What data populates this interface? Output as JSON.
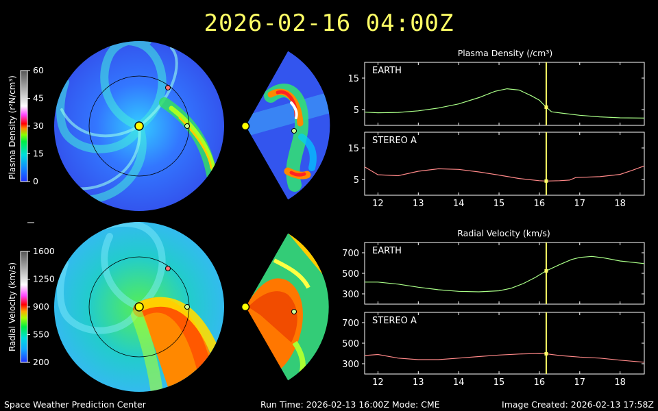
{
  "title": "2026-02-16  04:00Z",
  "footer": {
    "left": "Space Weather Prediction Center",
    "middle": "Run Time: 2026-02-13 16:00Z  Mode: CME",
    "right": "Image Created: 2026-02-13 17:58Z"
  },
  "density_colorbar": {
    "label": "Plasma Density (r²N/cm³)",
    "ticks": [
      "60",
      "45",
      "30",
      "15",
      "0"
    ]
  },
  "velocity_colorbar": {
    "label": "Radial Velocity (km/s)",
    "ticks": [
      "1600",
      "1250",
      "900",
      "550",
      "200"
    ]
  },
  "density_panel": {
    "title": "Plasma Density (/cm³)",
    "x_ticks": [
      "12",
      "13",
      "14",
      "15",
      "16",
      "17",
      "18"
    ],
    "earth": {
      "label": "EARTH",
      "y_ticks": [
        "15",
        "5"
      ]
    },
    "stereo": {
      "label": "STEREO A",
      "y_ticks": [
        "15",
        "5"
      ]
    }
  },
  "velocity_panel": {
    "title": "Radial Velocity (km/s)",
    "x_ticks": [
      "12",
      "13",
      "14",
      "15",
      "16",
      "17",
      "18"
    ],
    "earth": {
      "label": "EARTH",
      "y_ticks": [
        "700",
        "500",
        "300"
      ]
    },
    "stereo": {
      "label": "STEREO A",
      "y_ticks": [
        "700",
        "500",
        "300"
      ]
    }
  },
  "colors": {
    "title": "#ffff66",
    "earth_series": "#aaff88",
    "stereo_series": "#ff8888",
    "time_marker": "#ffff66",
    "earth_marker": "#ccff99",
    "stereo_marker": "#ff7777"
  },
  "chart_data": [
    {
      "type": "line",
      "title": "Plasma Density (/cm³)",
      "series": [
        {
          "name": "EARTH",
          "x": [
            11.67,
            12,
            12.5,
            13,
            13.5,
            14,
            14.5,
            14.9,
            15.2,
            15.5,
            15.8,
            16.0,
            16.15,
            16.3,
            16.6,
            17.0,
            17.5,
            18.0,
            18.6
          ],
          "values": [
            4.2,
            4.0,
            4.1,
            4.6,
            5.5,
            6.8,
            8.8,
            10.8,
            11.6,
            11.2,
            9.4,
            8.0,
            6.0,
            4.3,
            3.8,
            3.2,
            2.7,
            2.4,
            2.3
          ]
        }
      ],
      "ylim": [
        0,
        20
      ]
    },
    {
      "type": "line",
      "title": "Plasma Density (/cm³)",
      "series": [
        {
          "name": "STEREO A",
          "x": [
            11.67,
            12,
            12.5,
            13,
            13.5,
            14,
            14.5,
            15,
            15.5,
            16.0,
            16.15,
            16.5,
            16.75,
            16.9,
            17.5,
            18.0,
            18.3,
            18.6
          ],
          "values": [
            9.0,
            6.5,
            6.2,
            7.6,
            8.4,
            8.2,
            7.4,
            6.4,
            5.3,
            4.6,
            4.5,
            4.6,
            4.8,
            5.6,
            5.9,
            6.6,
            7.9,
            9.3
          ]
        }
      ],
      "ylim": [
        0,
        20
      ]
    },
    {
      "type": "line",
      "title": "Radial Velocity (km/s)",
      "series": [
        {
          "name": "EARTH",
          "x": [
            11.67,
            12,
            12.5,
            13,
            13.5,
            14,
            14.5,
            15,
            15.3,
            15.6,
            15.9,
            16.15,
            16.5,
            16.8,
            17.0,
            17.3,
            17.6,
            18.0,
            18.6
          ],
          "values": [
            415,
            415,
            395,
            365,
            340,
            325,
            320,
            330,
            355,
            400,
            460,
            520,
            585,
            635,
            655,
            665,
            650,
            620,
            595
          ]
        }
      ],
      "ylim": [
        200,
        800
      ]
    },
    {
      "type": "line",
      "title": "Radial Velocity (km/s)",
      "series": [
        {
          "name": "STEREO A",
          "x": [
            11.67,
            12,
            12.5,
            13,
            13.5,
            14,
            14.5,
            15,
            15.5,
            16.0,
            16.15,
            16.5,
            17.0,
            17.5,
            18.0,
            18.6
          ],
          "values": [
            380,
            390,
            355,
            340,
            340,
            355,
            370,
            385,
            395,
            400,
            398,
            380,
            365,
            355,
            335,
            315
          ]
        }
      ],
      "ylim": [
        200,
        800
      ]
    }
  ],
  "time_marker_x": 16.17
}
